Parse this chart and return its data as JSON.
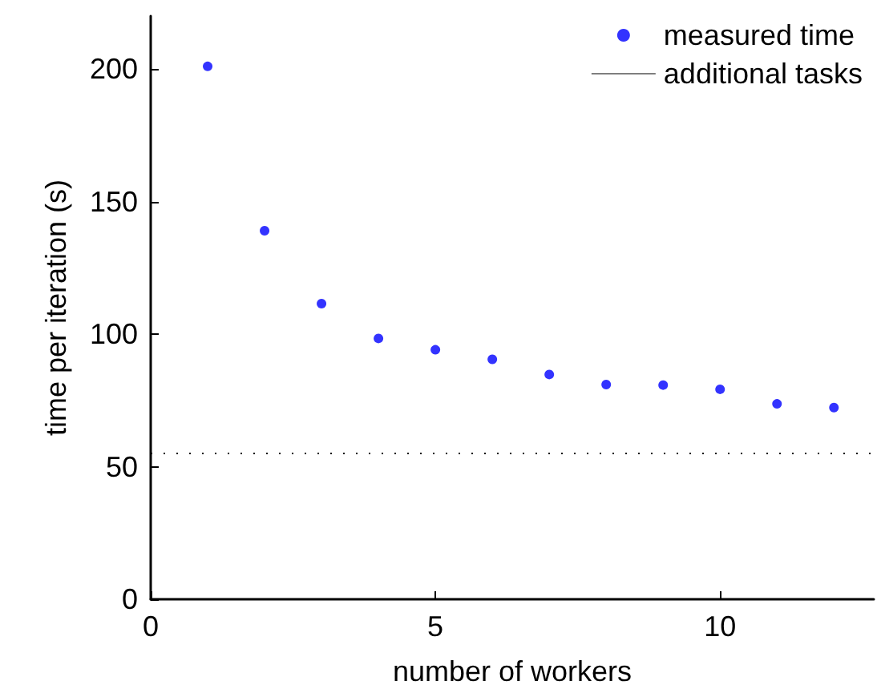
{
  "chart_data": {
    "type": "scatter",
    "xlabel": "number of workers",
    "ylabel": "time per iteration (s)",
    "x": [
      1,
      2,
      3,
      4,
      5,
      6,
      7,
      8,
      9,
      10,
      11,
      12
    ],
    "series": [
      {
        "name": "measured time",
        "color": "#0000ff",
        "values": [
          201,
          139,
          111.5,
          98.4,
          94.1,
          90.5,
          84.8,
          81,
          80.8,
          79.2,
          73.7,
          72.3
        ]
      }
    ],
    "ref_lines": [
      {
        "axis": "y",
        "value": 55,
        "label": "additional tasks",
        "color": "#000000",
        "line_style": "dotted"
      }
    ],
    "xlim": [
      0,
      12.7
    ],
    "xticks": [
      0,
      5,
      10
    ],
    "ylim": [
      0,
      220
    ],
    "yticks": [
      0,
      50,
      100,
      150,
      200
    ],
    "grid": false,
    "legend": "top right",
    "marker": "circle"
  }
}
